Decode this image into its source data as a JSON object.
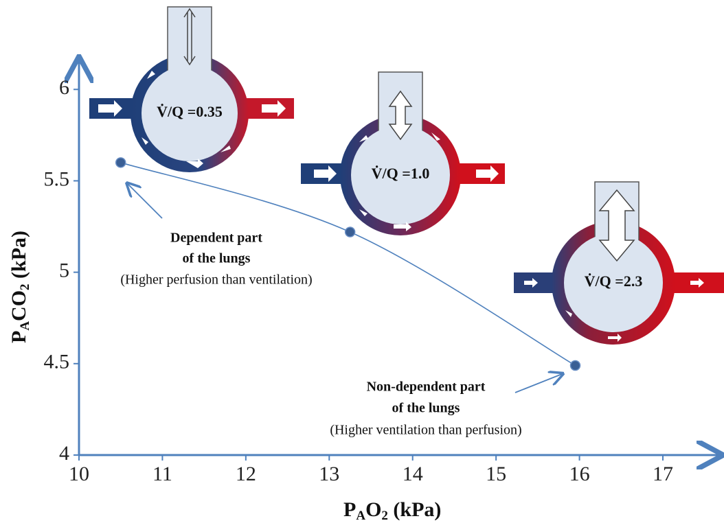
{
  "chart_data": {
    "type": "line",
    "x_label_parts": [
      "P",
      "A",
      "O",
      "2",
      " (kPa)"
    ],
    "y_label_parts": [
      "P",
      "A",
      "CO",
      "2",
      " (kPa)"
    ],
    "x": [
      10.5,
      13.25,
      15.95
    ],
    "series": [
      {
        "color": "#4f81bd",
        "values": [
          5.6,
          5.22,
          4.49
        ]
      }
    ],
    "xlim": [
      10,
      17.7
    ],
    "xticks": [
      10,
      11,
      12,
      13,
      14,
      15,
      16,
      17
    ],
    "ylim": [
      4,
      6.17
    ],
    "yticks": [
      4,
      4.5,
      5,
      5.5,
      6
    ],
    "diagrams": [
      {
        "label": "V̇/Q =0.35"
      },
      {
        "label": "V̇/Q =1.0"
      },
      {
        "label": "V̇/Q =2.3"
      }
    ],
    "annotations": [
      {
        "lines": [
          "Dependent part",
          "of the lungs"
        ],
        "note": "(Higher perfusion than ventilation)"
      },
      {
        "lines": [
          "Non-dependent part",
          "of the lungs"
        ],
        "note": "(Higher ventilation than perfusion)"
      }
    ]
  }
}
